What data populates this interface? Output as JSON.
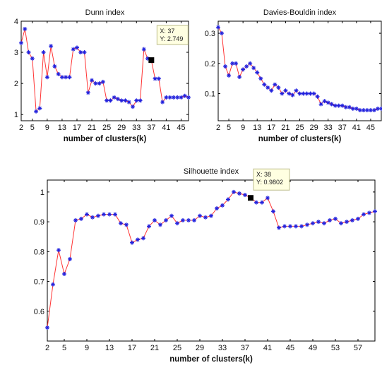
{
  "chart_data": [
    {
      "type": "line",
      "title": "Dunn index",
      "xlabel": "number of clusters(k)",
      "ylabel": "",
      "xlim": [
        2,
        47
      ],
      "ylim": [
        0.8,
        4.0
      ],
      "xticks": [
        2,
        5,
        9,
        13,
        17,
        21,
        25,
        29,
        33,
        37,
        41,
        45
      ],
      "yticks": [
        1,
        2,
        3,
        4
      ],
      "grid": false,
      "color": "#ff3333",
      "marker_color": "#2020dd",
      "x": [
        2,
        3,
        4,
        5,
        6,
        7,
        8,
        9,
        10,
        11,
        12,
        13,
        14,
        15,
        16,
        17,
        18,
        19,
        20,
        21,
        22,
        23,
        24,
        25,
        26,
        27,
        28,
        29,
        30,
        31,
        32,
        33,
        34,
        35,
        36,
        37,
        38,
        39,
        40,
        41,
        42,
        43,
        44,
        45,
        46,
        47
      ],
      "y": [
        3.3,
        3.75,
        3.0,
        2.8,
        1.1,
        1.2,
        3.0,
        2.2,
        3.2,
        2.55,
        2.3,
        2.2,
        2.2,
        2.2,
        3.1,
        3.15,
        3.0,
        3.0,
        1.7,
        2.1,
        2.0,
        2.0,
        2.05,
        1.45,
        1.45,
        1.55,
        1.5,
        1.45,
        1.45,
        1.4,
        1.25,
        1.45,
        1.45,
        3.1,
        2.8,
        2.749,
        2.15,
        2.15,
        1.4,
        1.55,
        1.55,
        1.55,
        1.55,
        1.55,
        1.6,
        1.55
      ],
      "datatip": {
        "x": 37,
        "y": 2.749,
        "line1": "X: 37",
        "line2": "Y: 2.749"
      }
    },
    {
      "type": "line",
      "title": "Davies-Bouldin index",
      "xlabel": "number of clusters(k)",
      "ylabel": "",
      "xlim": [
        2,
        48
      ],
      "ylim": [
        0.01,
        0.34
      ],
      "xticks": [
        2,
        5,
        9,
        13,
        17,
        21,
        25,
        29,
        33,
        37,
        41,
        45
      ],
      "yticks": [
        0.1,
        0.2,
        0.3
      ],
      "grid": false,
      "color": "#ff3333",
      "marker_color": "#2020dd",
      "x": [
        2,
        3,
        4,
        5,
        6,
        7,
        8,
        9,
        10,
        11,
        12,
        13,
        14,
        15,
        16,
        17,
        18,
        19,
        20,
        21,
        22,
        23,
        24,
        25,
        26,
        27,
        28,
        29,
        30,
        31,
        32,
        33,
        34,
        35,
        36,
        37,
        38,
        39,
        40,
        41,
        42,
        43,
        44,
        45,
        46,
        47,
        48
      ],
      "y": [
        0.32,
        0.3,
        0.19,
        0.16,
        0.2,
        0.2,
        0.155,
        0.18,
        0.19,
        0.2,
        0.185,
        0.17,
        0.15,
        0.13,
        0.12,
        0.11,
        0.13,
        0.12,
        0.1,
        0.11,
        0.1,
        0.095,
        0.11,
        0.1,
        0.1,
        0.1,
        0.1,
        0.1,
        0.09,
        0.065,
        0.075,
        0.07,
        0.065,
        0.06,
        0.06,
        0.06,
        0.055,
        0.055,
        0.05,
        0.05,
        0.045,
        0.045,
        0.045,
        0.045,
        0.045,
        0.05,
        0.05
      ]
    },
    {
      "type": "line",
      "title": "Silhouette index",
      "xlabel": "number of clusters(k)",
      "ylabel": "",
      "xlim": [
        2,
        60
      ],
      "ylim": [
        0.5,
        1.04
      ],
      "xticks": [
        2,
        5,
        9,
        13,
        17,
        21,
        25,
        29,
        33,
        37,
        41,
        45,
        49,
        53,
        57
      ],
      "yticks": [
        0.6,
        0.7,
        0.8,
        0.9,
        1
      ],
      "grid": false,
      "color": "#ff3333",
      "marker_color": "#2020dd",
      "x": [
        2,
        3,
        4,
        5,
        6,
        7,
        8,
        9,
        10,
        11,
        12,
        13,
        14,
        15,
        16,
        17,
        18,
        19,
        20,
        21,
        22,
        23,
        24,
        25,
        26,
        27,
        28,
        29,
        30,
        31,
        32,
        33,
        34,
        35,
        36,
        37,
        38,
        39,
        40,
        41,
        42,
        43,
        44,
        45,
        46,
        47,
        48,
        49,
        50,
        51,
        52,
        53,
        54,
        55,
        56,
        57,
        58,
        59,
        60
      ],
      "y": [
        0.545,
        0.69,
        0.805,
        0.725,
        0.775,
        0.905,
        0.91,
        0.925,
        0.915,
        0.92,
        0.925,
        0.925,
        0.925,
        0.895,
        0.89,
        0.83,
        0.84,
        0.845,
        0.885,
        0.905,
        0.89,
        0.905,
        0.92,
        0.895,
        0.905,
        0.905,
        0.905,
        0.92,
        0.915,
        0.92,
        0.945,
        0.955,
        0.975,
        1.0,
        0.995,
        0.99,
        0.9802,
        0.965,
        0.965,
        0.98,
        0.935,
        0.88,
        0.885,
        0.885,
        0.885,
        0.885,
        0.89,
        0.895,
        0.9,
        0.895,
        0.905,
        0.91,
        0.895,
        0.9,
        0.905,
        0.91,
        0.925,
        0.93,
        0.935
      ],
      "datatip": {
        "x": 38,
        "y": 0.9802,
        "line1": "X: 38",
        "line2": "Y: 0.9802"
      }
    }
  ]
}
